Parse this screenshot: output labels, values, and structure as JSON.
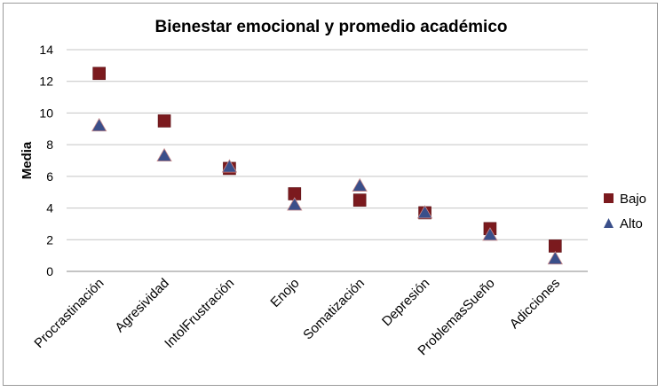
{
  "chart_data": {
    "type": "scatter",
    "title": "Bienestar emocional y promedio académico",
    "xlabel": "",
    "ylabel": "Media",
    "ylim": [
      0,
      14
    ],
    "yticks": [
      0,
      2,
      4,
      6,
      8,
      10,
      12,
      14
    ],
    "grid": true,
    "legend_position": "right",
    "categories": [
      "Procrastinación",
      "Agresividad",
      "IntolFrustración",
      "Enojo",
      "Somatización",
      "Depresión",
      "ProblemasSueño",
      "Adicciones"
    ],
    "series": [
      {
        "name": "Bajo",
        "marker": "square",
        "color": "#7b1a1e",
        "values": [
          12.5,
          9.5,
          6.5,
          4.9,
          4.5,
          3.7,
          2.7,
          1.6
        ]
      },
      {
        "name": "Alto",
        "marker": "triangle",
        "color": "#3a4f8a",
        "values": [
          9.2,
          7.3,
          6.6,
          4.2,
          5.4,
          3.7,
          2.3,
          0.8
        ]
      }
    ]
  }
}
